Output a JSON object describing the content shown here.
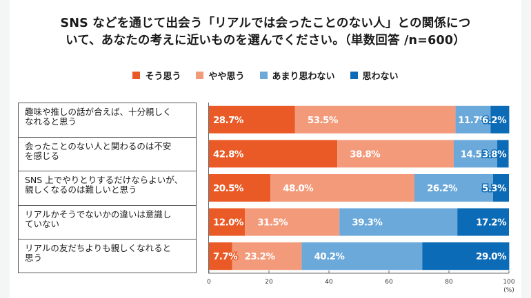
{
  "title_lines": [
    "SNS などを通じて出会う「リアルでは会ったことのない人」との関係につ",
    "いて、あなたの考えに近いものを選んでください。（単数回答 /n=600）"
  ],
  "chart_data": {
    "type": "bar",
    "orientation": "horizontal",
    "stacked": true,
    "title": "SNS などを通じて出会う「リアルでは会ったことのない人」との関係について、あなたの考えに近いものを選んでください。（単数回答 /n=600）",
    "categories": [
      "趣味や推しの話が合えば、十分親しくなれると思う",
      "会ったことのない人と関わるのは不安を感じる",
      "SNS 上でやりとりするだけならよいが、親しくなるのは難しいと思う",
      "リアルかそうでないかの違いは意識していない",
      "リアルの友だちよりも親しくなれると思う"
    ],
    "category_lines": [
      [
        "趣味や推しの話が合えば、十分親しく",
        "なれると思う"
      ],
      [
        "会ったことのない人と関わるのは不安",
        "を感じる"
      ],
      [
        "SNS 上でやりとりするだけならよいが、",
        "親しくなるのは難しいと思う"
      ],
      [
        "リアルかそうでないかの違いは意識し",
        "ていない"
      ],
      [
        "リアルの友だちよりも親しくなれると",
        "思う"
      ]
    ],
    "series": [
      {
        "name": "そう思う",
        "color": "#e95a26",
        "values": [
          28.7,
          42.8,
          20.5,
          12.0,
          7.7
        ]
      },
      {
        "name": "やや思う",
        "color": "#f39a7b",
        "values": [
          53.5,
          38.8,
          48.0,
          31.5,
          23.2
        ]
      },
      {
        "name": "あまり思わない",
        "color": "#6aa9da",
        "values": [
          11.7,
          14.5,
          26.2,
          39.3,
          40.2
        ]
      },
      {
        "name": "思わない",
        "color": "#0c6bb6",
        "values": [
          6.2,
          3.8,
          5.3,
          17.2,
          29.0
        ]
      }
    ],
    "data_labels": [
      [
        "28.7%",
        "53.5%",
        "11.7%",
        "6.2%"
      ],
      [
        "42.8%",
        "38.8%",
        "14.5%",
        "3.8%"
      ],
      [
        "20.5%",
        "48.0%",
        "26.2%",
        "5.3%"
      ],
      [
        "12.0%",
        "31.5%",
        "39.3%",
        "17.2%"
      ],
      [
        "7.7%",
        "23.2%",
        "40.2%",
        "29.0%"
      ]
    ],
    "xlim": [
      0,
      100
    ],
    "xticks": [
      0,
      20,
      40,
      60,
      80,
      100
    ],
    "xtick_labels": [
      "0",
      "20",
      "40",
      "60",
      "80",
      "100"
    ],
    "xlabel": "(%)",
    "ylabel": "",
    "legend_position": "top",
    "grid": false
  }
}
